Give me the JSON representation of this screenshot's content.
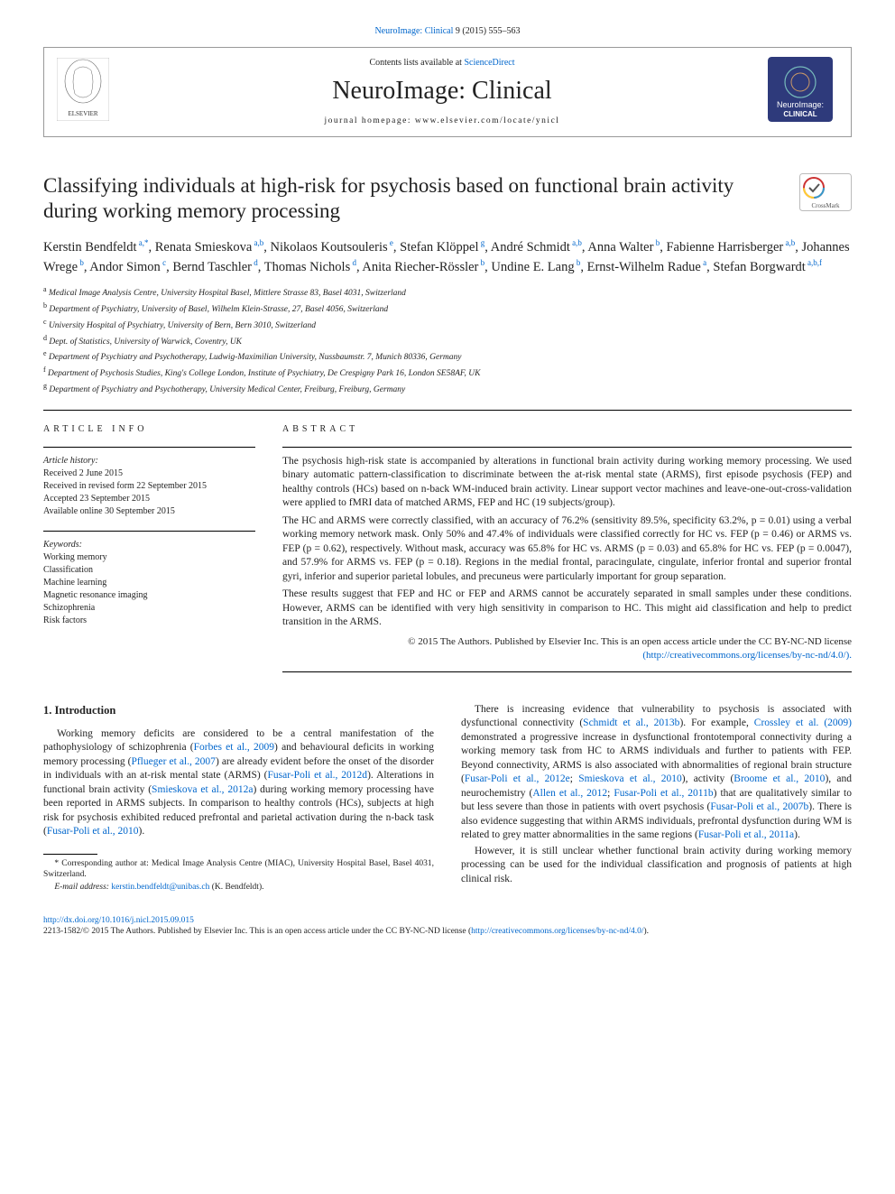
{
  "top": {
    "journal_ref_pre": "NeuroImage: Clinical",
    "journal_ref_post": " 9 (2015) 555–563"
  },
  "header": {
    "contents_pre": "Contents lists available at ",
    "contents_link": "ScienceDirect",
    "journal": "NeuroImage: Clinical",
    "homepage_pre": "journal homepage: ",
    "homepage_url": "www.elsevier.com/locate/ynicl"
  },
  "article": {
    "title": "Classifying individuals at high-risk for psychosis based on functional brain activity during working memory processing",
    "crossmark_label": "CrossMark"
  },
  "authors": [
    {
      "name": "Kerstin Bendfeldt",
      "aff": "a,*"
    },
    {
      "name": "Renata Smieskova",
      "aff": "a,b"
    },
    {
      "name": "Nikolaos Koutsouleris",
      "aff": "e"
    },
    {
      "name": "Stefan Klöppel",
      "aff": "g"
    },
    {
      "name": "André Schmidt",
      "aff": "a,b"
    },
    {
      "name": "Anna Walter",
      "aff": "b"
    },
    {
      "name": "Fabienne Harrisberger",
      "aff": "a,b"
    },
    {
      "name": "Johannes Wrege",
      "aff": "b"
    },
    {
      "name": "Andor Simon",
      "aff": "c"
    },
    {
      "name": "Bernd Taschler",
      "aff": "d"
    },
    {
      "name": "Thomas Nichols",
      "aff": "d"
    },
    {
      "name": "Anita Riecher-Rössler",
      "aff": "b"
    },
    {
      "name": "Undine E. Lang",
      "aff": "b"
    },
    {
      "name": "Ernst-Wilhelm Radue",
      "aff": "a"
    },
    {
      "name": "Stefan Borgwardt",
      "aff": "a,b,f"
    }
  ],
  "affiliations": [
    {
      "key": "a",
      "text": "Medical Image Analysis Centre, University Hospital Basel, Mittlere Strasse 83, Basel 4031, Switzerland"
    },
    {
      "key": "b",
      "text": "Department of Psychiatry, University of Basel, Wilhelm Klein-Strasse, 27, Basel 4056, Switzerland"
    },
    {
      "key": "c",
      "text": "University Hospital of Psychiatry, University of Bern, Bern 3010, Switzerland"
    },
    {
      "key": "d",
      "text": "Dept. of Statistics, University of Warwick, Coventry, UK"
    },
    {
      "key": "e",
      "text": "Department of Psychiatry and Psychotherapy, Ludwig-Maximilian University, Nussbaumstr. 7, Munich 80336, Germany"
    },
    {
      "key": "f",
      "text": "Department of Psychosis Studies, King's College London, Institute of Psychiatry, De Crespigny Park 16, London SE58AF, UK"
    },
    {
      "key": "g",
      "text": "Department of Psychiatry and Psychotherapy, University Medical Center, Freiburg, Freiburg, Germany"
    }
  ],
  "info": {
    "heading": "ARTICLE INFO",
    "history_label": "Article history:",
    "history": [
      "Received 2 June 2015",
      "Received in revised form 22 September 2015",
      "Accepted 23 September 2015",
      "Available online 30 September 2015"
    ],
    "keywords_label": "Keywords:",
    "keywords": [
      "Working memory",
      "Classification",
      "Machine learning",
      "Magnetic resonance imaging",
      "Schizophrenia",
      "Risk factors"
    ]
  },
  "abstract": {
    "heading": "ABSTRACT",
    "p1": "The psychosis high-risk state is accompanied by alterations in functional brain activity during working memory processing. We used binary automatic pattern-classification to discriminate between the at-risk mental state (ARMS), first episode psychosis (FEP) and healthy controls (HCs) based on n-back WM-induced brain activity. Linear support vector machines and leave-one-out-cross-validation were applied to fMRI data of matched ARMS, FEP and HC (19 subjects/group).",
    "p2": "The HC and ARMS were correctly classified, with an accuracy of 76.2% (sensitivity 89.5%, specificity 63.2%, p = 0.01) using a verbal working memory network mask. Only 50% and 47.4% of individuals were classified correctly for HC vs. FEP (p = 0.46) or ARMS vs. FEP (p = 0.62), respectively. Without mask, accuracy was 65.8% for HC vs. ARMS (p = 0.03) and 65.8% for HC vs. FEP (p = 0.0047), and 57.9% for ARMS vs. FEP (p = 0.18). Regions in the medial frontal, paracingulate, cingulate, inferior frontal and superior frontal gyri, inferior and superior parietal lobules, and precuneus were particularly important for group separation.",
    "p3": "These results suggest that FEP and HC or FEP and ARMS cannot be accurately separated in small samples under these conditions. However, ARMS can be identified with very high sensitivity in comparison to HC. This might aid classification and help to predict transition in the ARMS.",
    "copyright": "© 2015 The Authors. Published by Elsevier Inc. This is an open access article under the CC BY-NC-ND license",
    "license_url": "(http://creativecommons.org/licenses/by-nc-nd/4.0/)."
  },
  "body": {
    "intro_heading": "1. Introduction",
    "left_p1_a": "Working memory deficits are considered to be a central manifestation of the pathophysiology of schizophrenia (",
    "left_p1_l1": "Forbes et al., 2009",
    "left_p1_b": ") and behavioural deficits in working memory processing (",
    "left_p1_l2": "Pflueger et al., 2007",
    "left_p1_c": ") are already evident before the onset of the disorder in individuals with an at-risk mental state (ARMS) (",
    "left_p1_l3": "Fusar-Poli et al., 2012d",
    "left_p1_d": "). Alterations in functional brain activity (",
    "left_p1_l4": "Smieskova et al., 2012a",
    "left_p1_e": ") during working memory processing have been reported in ARMS subjects. In comparison to healthy controls (HCs), subjects at high risk for psychosis exhibited reduced prefrontal and parietal activation during the n-back task (",
    "left_p1_l5": "Fusar-Poli et al., 2010",
    "left_p1_f": ").",
    "right_p1_a": "There is increasing evidence that vulnerability to psychosis is associated with dysfunctional connectivity (",
    "right_p1_l1": "Schmidt et al., 2013b",
    "right_p1_b": "). For example, ",
    "right_p1_l2": "Crossley et al. (2009)",
    "right_p1_c": " demonstrated a progressive increase in dysfunctional frontotemporal connectivity during a working memory task from HC to ARMS individuals and further to patients with FEP. Beyond connectivity, ARMS is also associated with abnormalities of regional brain structure (",
    "right_p1_l3": "Fusar-Poli et al., 2012e",
    "right_p1_d": "; ",
    "right_p1_l4": "Smieskova et al., 2010",
    "right_p1_e": "), activity (",
    "right_p1_l5": "Broome et al., 2010",
    "right_p1_f": "), and neurochemistry (",
    "right_p1_l6": "Allen et al., 2012",
    "right_p1_g": "; ",
    "right_p1_l7": "Fusar-Poli et al., 2011b",
    "right_p1_h": ") that are qualitatively similar to but less severe than those in patients with overt psychosis (",
    "right_p1_l8": "Fusar-Poli et al., 2007b",
    "right_p1_i": "). There is also evidence suggesting that within ARMS individuals, prefrontal dysfunction during WM is related to grey matter abnormalities in the same regions (",
    "right_p1_l9": "Fusar-Poli et al., 2011a",
    "right_p1_j": ").",
    "right_p2": "However, it is still unclear whether functional brain activity during working memory processing can be used for the individual classification and prognosis of patients at high clinical risk."
  },
  "footnote": {
    "corr": "* Corresponding author at: Medical Image Analysis Centre (MIAC), University Hospital Basel, Basel 4031, Switzerland.",
    "email_label": "E-mail address: ",
    "email": "kerstin.bendfeldt@unibas.ch",
    "email_post": " (K. Bendfeldt)."
  },
  "footer": {
    "doi": "http://dx.doi.org/10.1016/j.nicl.2015.09.015",
    "line2_a": "2213-1582/© 2015 The Authors. Published by Elsevier Inc. This is an open access article under the CC BY-NC-ND license (",
    "line2_link": "http://creativecommons.org/licenses/by-nc-nd/4.0/",
    "line2_b": ")."
  },
  "colors": {
    "link": "#0066cc",
    "rule": "#000000",
    "elsevier_orange": "#f58220",
    "logo_bg": "#2e3a7b"
  }
}
